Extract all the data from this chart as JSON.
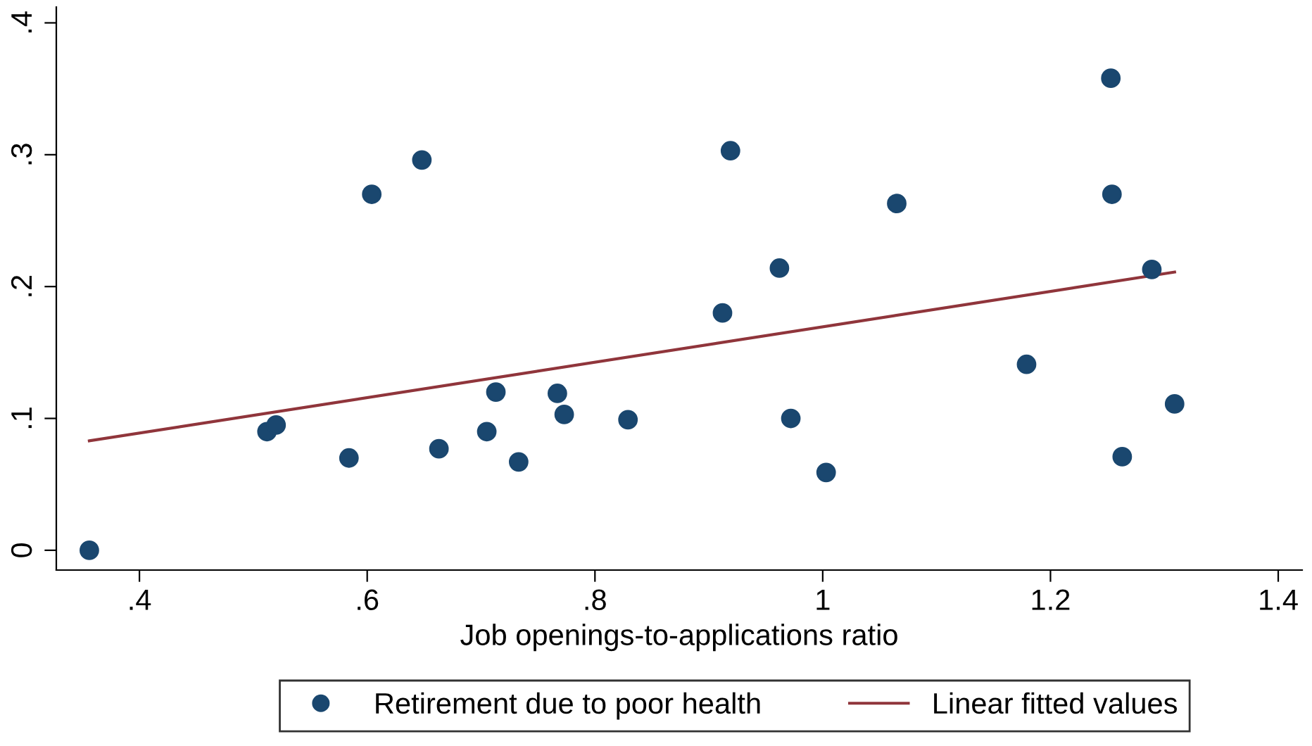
{
  "chart_data": {
    "type": "scatter",
    "xlabel": "Job openings-to-applications ratio",
    "xlim": [
      0.327,
      1.421
    ],
    "ylim": [
      -0.015,
      0.412
    ],
    "xticks": [
      {
        "value": 0.4,
        "label": ".4"
      },
      {
        "value": 0.6,
        "label": ".6"
      },
      {
        "value": 0.8,
        "label": ".8"
      },
      1,
      {
        "value": 1.2,
        "label": "1.2"
      },
      {
        "value": 1.4,
        "label": "1.4"
      }
    ],
    "yticks": [
      0,
      {
        "value": 0.1,
        "label": ".1"
      },
      {
        "value": 0.2,
        "label": ".2"
      },
      {
        "value": 0.3,
        "label": ".3"
      },
      {
        "value": 0.4,
        "label": ".4"
      }
    ],
    "legend": "bottom",
    "series": [
      {
        "name": "Retirement due to poor health",
        "marker": "circle",
        "color": "#1a476f",
        "x": [
          0.356,
          0.512,
          0.52,
          0.584,
          0.604,
          0.648,
          0.663,
          0.705,
          0.713,
          0.733,
          0.767,
          0.773,
          0.829,
          0.912,
          0.919,
          0.962,
          0.972,
          1.003,
          1.065,
          1.179,
          1.253,
          1.254,
          1.263,
          1.289,
          1.309
        ],
        "values": [
          0.0,
          0.09,
          0.095,
          0.07,
          0.27,
          0.296,
          0.077,
          0.09,
          0.12,
          0.067,
          0.119,
          0.103,
          0.099,
          0.18,
          0.303,
          0.214,
          0.1,
          0.059,
          0.263,
          0.141,
          0.358,
          0.27,
          0.071,
          0.213,
          0.111
        ]
      },
      {
        "name": "Linear fitted values",
        "type": "line",
        "color": "#90353b",
        "x": [
          0.356,
          1.309
        ],
        "values": [
          0.083,
          0.211
        ]
      }
    ]
  }
}
